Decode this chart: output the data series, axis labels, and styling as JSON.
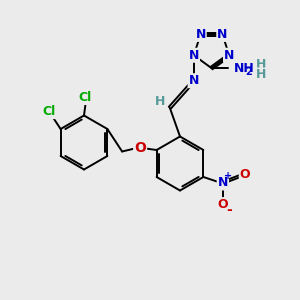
{
  "bg_color": "#ebebeb",
  "bond_color": "#000000",
  "bond_lw": 1.4,
  "atom_colors": {
    "N": "#0000cc",
    "Cl": "#00aa00",
    "O": "#cc0000",
    "H": "#559999",
    "C": "#000000"
  },
  "figsize": [
    3.0,
    3.0
  ],
  "dpi": 100,
  "xlim": [
    0,
    10
  ],
  "ylim": [
    0,
    10
  ]
}
